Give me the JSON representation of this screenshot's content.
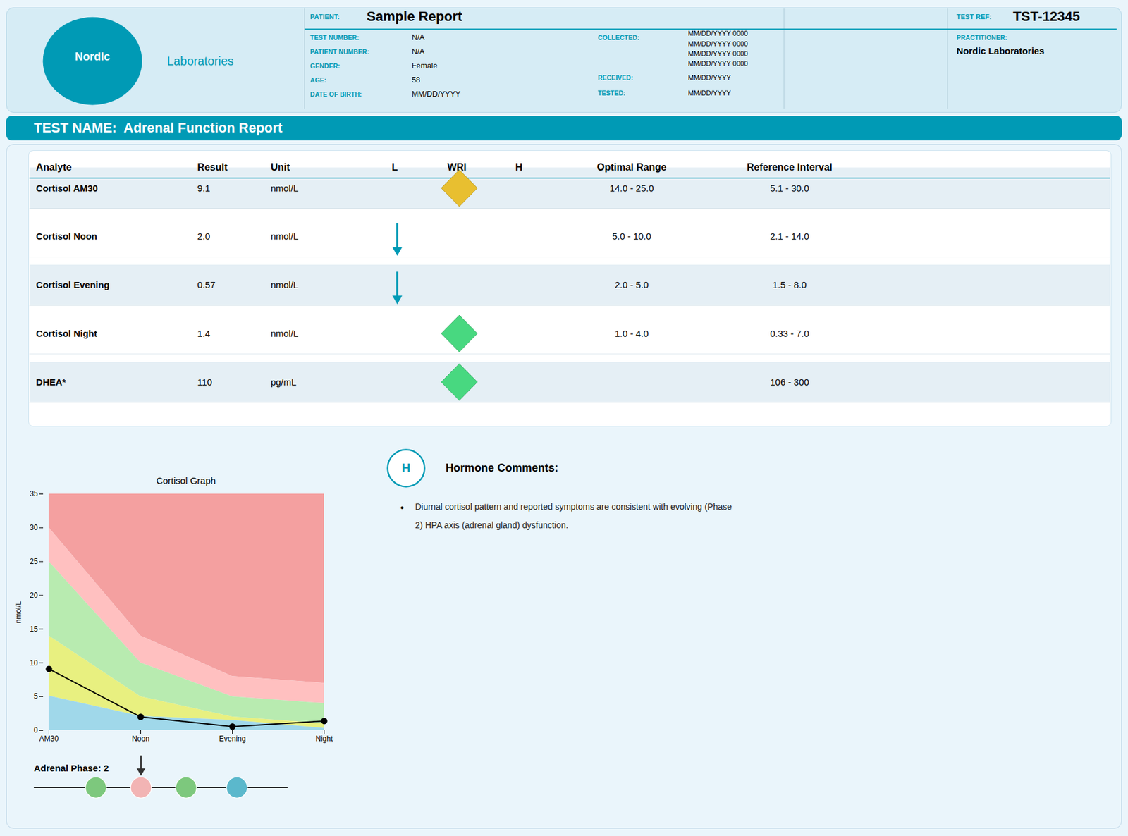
{
  "chart_data": {
    "type": "line",
    "title": "Cortisol Graph",
    "categories": [
      "AM30",
      "Noon",
      "Evening",
      "Night"
    ],
    "values": [
      9.1,
      2.0,
      0.57,
      1.4
    ],
    "color": "#000000",
    "marker": "circle",
    "line_style": "solid",
    "bands": [
      {
        "lower": [
          30.0,
          14.0,
          8.0,
          7.0
        ],
        "upper": [
          35,
          35,
          35,
          35
        ],
        "color": "#f4a0a0"
      },
      {
        "lower": [
          25.0,
          10.0,
          5.0,
          4.0
        ],
        "upper": [
          30.0,
          14.0,
          8.0,
          7.0
        ],
        "color": "#ffc0c0"
      },
      {
        "lower": [
          14.0,
          5.0,
          2.0,
          1.0
        ],
        "upper": [
          25.0,
          10.0,
          5.0,
          4.0
        ],
        "color": "#b8ebb0"
      },
      {
        "lower": [
          5.1,
          2.1,
          1.5,
          0.33
        ],
        "upper": [
          14.0,
          5.0,
          2.0,
          1.0
        ],
        "color": "#e8f080"
      },
      {
        "lower": [
          0,
          0,
          0,
          0
        ],
        "upper": [
          5.1,
          2.1,
          1.5,
          0.33
        ],
        "color": "#a0d8ea"
      }
    ],
    "ylabel": "nmol/L",
    "ylim": [
      0,
      35
    ],
    "yticks": [
      0,
      5,
      10,
      15,
      20,
      25,
      30,
      35
    ],
    "grid": false
  },
  "report": {
    "logo": [
      "Nordic",
      "Laboratories"
    ],
    "fields": [
      {
        "label": "PATIENT:",
        "value": "Sample Report"
      },
      {
        "label": "TEST REF:",
        "value": "TST-12345"
      },
      {
        "label": "TEST NUMBER:",
        "value": "N/A"
      },
      {
        "label": "PATIENT NUMBER:",
        "value": "N/A"
      },
      {
        "label": "GENDER:",
        "value": "Female"
      },
      {
        "label": "AGE:",
        "value": "58"
      },
      {
        "label": "DATE OF BIRTH:",
        "value": "MM/DD/YYYY"
      },
      {
        "label": "COLLECTED:",
        "value": [
          "MM/DD/YYYY 0000",
          "MM/DD/YYYY 0000",
          "MM/DD/YYYY 0000",
          "MM/DD/YYYY 0000"
        ]
      },
      {
        "label": "RECEIVED:",
        "value": "MM/DD/YYYY"
      },
      {
        "label": "TESTED:",
        "value": "MM/DD/YYYY"
      },
      {
        "label": "PRACTITIONER:",
        "value": "Nordic Laboratories"
      }
    ],
    "banner": "TEST NAME:  Adrenal Function Report",
    "table": {
      "columns": [
        "Analyte",
        "Result",
        "Unit",
        "L",
        "WRI",
        "H",
        "Optimal Range",
        "Reference Interval"
      ],
      "rows": [
        {
          "analyte": "Cortisol AM30",
          "result": "9.1",
          "unit": "nmol/L",
          "flag": "WRI",
          "marker": "diamond",
          "color": "#e8bf30",
          "optimal": "14.0 - 25.0",
          "ref": "5.1 - 30.0"
        },
        {
          "analyte": "Cortisol Noon",
          "result": "2.0",
          "unit": "nmol/L",
          "flag": "L",
          "marker": "arrow_down",
          "color": "#009ab5",
          "optimal": "5.0 - 10.0",
          "ref": "2.1 - 14.0"
        },
        {
          "analyte": "Cortisol Evening",
          "result": "0.57",
          "unit": "nmol/L",
          "flag": "L",
          "marker": "arrow_down",
          "color": "#009ab5",
          "optimal": "2.0 - 5.0",
          "ref": "1.5 - 8.0"
        },
        {
          "analyte": "Cortisol Night",
          "result": "1.4",
          "unit": "nmol/L",
          "flag": "WRI",
          "marker": "diamond",
          "color": "#48d880",
          "optimal": "1.0 - 4.0",
          "ref": "0.33 - 7.0"
        },
        {
          "analyte": "DHEA*",
          "result": "110",
          "unit": "pg/mL",
          "flag": "WRI",
          "marker": "diamond",
          "color": "#48d880",
          "optimal": null,
          "ref": "106 - 300"
        }
      ]
    },
    "comments": {
      "badge": "H",
      "title": "Hormone Comments:",
      "bullet": "•",
      "lines": [
        "Diurnal cortisol pattern and reported symptoms are consistent with evolving (Phase",
        "2) HPA axis (adrenal gland) dysfunction."
      ]
    },
    "phase": {
      "label": "Adrenal Phase: 2",
      "colors": [
        "#7dc87d",
        "#f2b4b4",
        "#7dc87d",
        "#5bb8cc"
      ],
      "pointer": 1
    }
  }
}
